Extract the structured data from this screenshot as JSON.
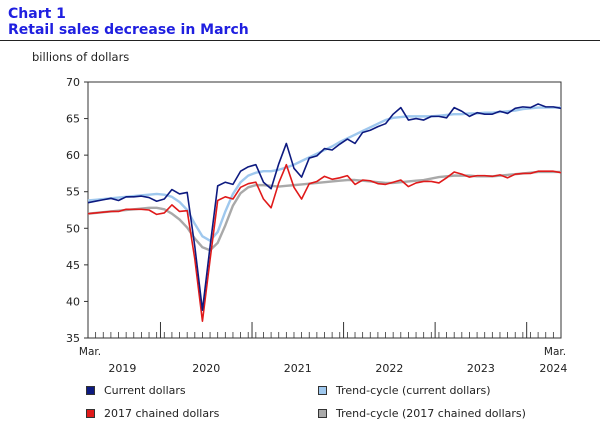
{
  "header": {
    "number": "Chart 1",
    "title": "Retail sales decrease in March"
  },
  "colors": {
    "current": "#0d1a80",
    "trend_current": "#9fc8ee",
    "chained": "#e01a1a",
    "trend_chained": "#a9a9a9"
  },
  "chart_data": {
    "type": "line",
    "ylabel": "billions of dollars",
    "ylim": [
      35,
      70
    ],
    "yticks": [
      35,
      40,
      45,
      50,
      55,
      60,
      65,
      70
    ],
    "x_start_label": "Mar.",
    "x_end_label": "Mar.",
    "year_labels": [
      "2019",
      "2020",
      "2021",
      "2022",
      "2023",
      "2024"
    ],
    "grid": false,
    "legend_position": "bottom",
    "series": [
      {
        "name": "Current dollars",
        "key": "current",
        "values": [
          53.5,
          53.7,
          53.9,
          54.1,
          53.8,
          54.3,
          54.3,
          54.4,
          54.2,
          53.7,
          54.0,
          55.3,
          54.7,
          54.9,
          47.5,
          38.8,
          47.5,
          55.8,
          56.3,
          56.0,
          57.8,
          58.4,
          58.7,
          56.3,
          55.4,
          58.8,
          61.6,
          58.2,
          57.0,
          59.6,
          59.9,
          60.9,
          60.7,
          61.5,
          62.2,
          61.6,
          63.1,
          63.4,
          63.9,
          64.3,
          65.6,
          66.5,
          64.8,
          65.0,
          64.8,
          65.3,
          65.3,
          65.1,
          66.5,
          66.0,
          65.3,
          65.8,
          65.6,
          65.6,
          66.0,
          65.7,
          66.4,
          66.6,
          66.5,
          67.0,
          66.6,
          66.6,
          66.4
        ]
      },
      {
        "name": "Trend-cycle (current dollars)",
        "key": "trend_current",
        "values": [
          53.8,
          53.9,
          54.0,
          54.1,
          54.2,
          54.3,
          54.4,
          54.5,
          54.6,
          54.7,
          54.6,
          54.3,
          53.6,
          52.5,
          50.6,
          48.9,
          48.3,
          49.5,
          52.3,
          54.7,
          56.3,
          57.2,
          57.6,
          57.8,
          57.8,
          58.0,
          58.3,
          58.7,
          59.2,
          59.7,
          60.2,
          60.7,
          61.2,
          61.8,
          62.3,
          62.8,
          63.3,
          63.8,
          64.3,
          64.8,
          65.1,
          65.2,
          65.3,
          65.3,
          65.3,
          65.3,
          65.4,
          65.5,
          65.6,
          65.6,
          65.7,
          65.7,
          65.8,
          65.8,
          65.9,
          66.0,
          66.1,
          66.3,
          66.4,
          66.5,
          66.5,
          66.5,
          66.5
        ]
      },
      {
        "name": "2017 chained dollars",
        "key": "chained",
        "values": [
          52.0,
          52.1,
          52.2,
          52.3,
          52.3,
          52.6,
          52.6,
          52.6,
          52.5,
          51.9,
          52.1,
          53.2,
          52.3,
          52.4,
          45.8,
          37.3,
          45.7,
          53.8,
          54.3,
          54.0,
          55.6,
          56.1,
          56.3,
          54.0,
          52.8,
          56.2,
          58.7,
          55.6,
          54.0,
          56.1,
          56.4,
          57.1,
          56.7,
          56.9,
          57.2,
          56.0,
          56.6,
          56.5,
          56.1,
          56.0,
          56.3,
          56.6,
          55.7,
          56.2,
          56.4,
          56.4,
          56.2,
          56.9,
          57.7,
          57.4,
          57.0,
          57.2,
          57.2,
          57.1,
          57.3,
          56.9,
          57.4,
          57.5,
          57.5,
          57.8,
          57.8,
          57.8,
          57.6
        ]
      },
      {
        "name": "Trend-cycle (2017 chained dollars)",
        "key": "trend_chained",
        "values": [
          52.0,
          52.1,
          52.2,
          52.3,
          52.4,
          52.5,
          52.6,
          52.7,
          52.8,
          52.8,
          52.6,
          52.0,
          51.2,
          50.1,
          48.6,
          47.4,
          47.0,
          48.0,
          50.4,
          53.1,
          54.8,
          55.6,
          55.9,
          55.9,
          55.8,
          55.7,
          55.8,
          55.9,
          56.0,
          56.1,
          56.2,
          56.3,
          56.4,
          56.5,
          56.6,
          56.6,
          56.5,
          56.4,
          56.3,
          56.2,
          56.2,
          56.3,
          56.4,
          56.5,
          56.6,
          56.8,
          57.0,
          57.1,
          57.2,
          57.2,
          57.2,
          57.1,
          57.1,
          57.1,
          57.2,
          57.3,
          57.4,
          57.5,
          57.6,
          57.7,
          57.7,
          57.7,
          57.7
        ]
      }
    ]
  }
}
